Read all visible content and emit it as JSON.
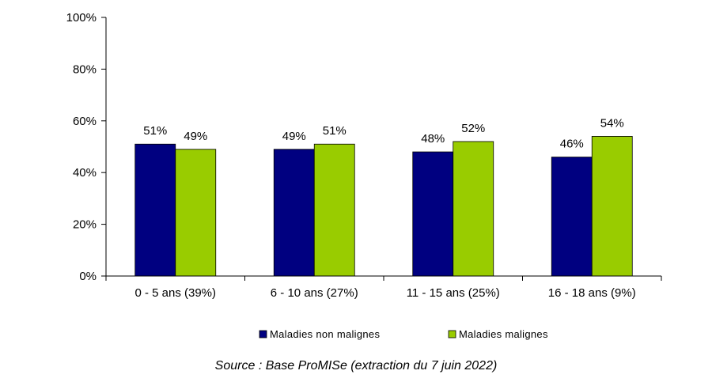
{
  "chart_data": {
    "type": "bar",
    "categories": [
      "0 - 5 ans (39%)",
      "6 - 10 ans (27%)",
      "11 - 15 ans (25%)",
      "16 - 18 ans (9%)"
    ],
    "series": [
      {
        "name": "Maladies non malignes",
        "values": [
          51,
          49,
          48,
          46
        ],
        "labels": [
          "51%",
          "49%",
          "48%",
          "46%"
        ],
        "color": "#000080"
      },
      {
        "name": "Maladies malignes",
        "values": [
          49,
          51,
          52,
          54
        ],
        "labels": [
          "49%",
          "51%",
          "52%",
          "54%"
        ],
        "color": "#99CC00"
      }
    ],
    "y_ticks": [
      "0%",
      "20%",
      "40%",
      "60%",
      "80%",
      "100%"
    ],
    "ylim": [
      0,
      100
    ],
    "grid": false,
    "legend_position": "bottom"
  },
  "source": "Source : Base ProMISe (extraction du 7 juin 2022)"
}
